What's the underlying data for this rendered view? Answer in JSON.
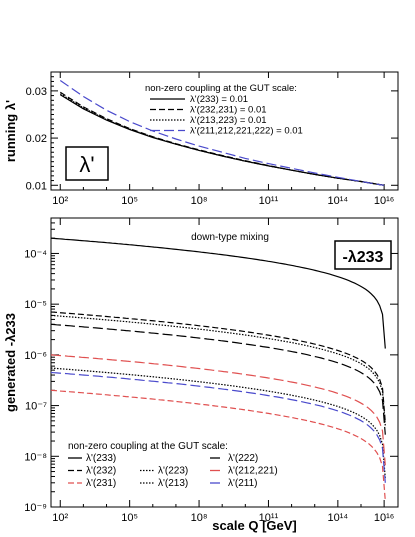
{
  "chart_data": [
    {
      "type": "line",
      "ylabel": "running λ'",
      "xscale": "log",
      "x_ticks": [
        "10²",
        "10⁵",
        "10⁸",
        "10¹¹",
        "10¹⁴",
        "10¹⁶"
      ],
      "y_ticks": [
        "0.03",
        "0.02",
        "0.01"
      ],
      "ylim": [
        0.009,
        0.034
      ],
      "panel_label": "λ'",
      "legend_title": "non-zero coupling at the GUT scale:",
      "legend_position": "top-right",
      "x": [
        100,
        1000.0,
        10000.0,
        100000.0,
        1000000.0,
        10000000.0,
        100000000.0,
        1000000000.0,
        10000000000.0,
        100000000000.0,
        1000000000000.0,
        10000000000000.0,
        100000000000000.0,
        1000000000000000.0,
        1e+16
      ],
      "series": [
        {
          "name": "λ'(233) = 0.01",
          "color": "#000000",
          "dash": "solid",
          "values": [
            0.0292,
            0.0262,
            0.0238,
            0.0218,
            0.0201,
            0.0187,
            0.0174,
            0.0162,
            0.0151,
            0.0141,
            0.0132,
            0.0123,
            0.0115,
            0.0108,
            0.01
          ]
        },
        {
          "name": "λ'(232,231) = 0.01",
          "color": "#000000",
          "dash": "dash",
          "values": [
            0.0297,
            0.0266,
            0.0241,
            0.022,
            0.0203,
            0.0188,
            0.0175,
            0.0163,
            0.0152,
            0.0142,
            0.0132,
            0.0123,
            0.0115,
            0.0108,
            0.01
          ]
        },
        {
          "name": "λ'(213,223) = 0.01",
          "color": "#000000",
          "dash": "dot",
          "values": [
            0.0294,
            0.0264,
            0.0239,
            0.0219,
            0.0202,
            0.0187,
            0.0174,
            0.0162,
            0.0151,
            0.0141,
            0.0132,
            0.0123,
            0.0115,
            0.0108,
            0.01
          ]
        },
        {
          "name": "λ'(211,212,221,222) = 0.01",
          "color": "#4a4acc",
          "dash": "longdash",
          "values": [
            0.0322,
            0.0288,
            0.0259,
            0.0235,
            0.0215,
            0.0198,
            0.0183,
            0.017,
            0.0157,
            0.0146,
            0.0136,
            0.0126,
            0.0117,
            0.0108,
            0.01
          ]
        }
      ]
    },
    {
      "type": "line",
      "xlabel": "scale Q [GeV]",
      "ylabel": "generated -λ233",
      "xscale": "log",
      "yscale": "log",
      "x_ticks": [
        "10²",
        "10⁵",
        "10⁸",
        "10¹¹",
        "10¹⁴",
        "10¹⁶"
      ],
      "y_ticks": [
        "10⁻⁴",
        "10⁻⁵",
        "10⁻⁶",
        "10⁻⁷",
        "10⁻⁸",
        "10⁻⁹"
      ],
      "ylim": [
        1e-09,
        0.0005
      ],
      "annotation": "down-type mixing",
      "panel_label": "-λ233",
      "legend_title": "non-zero coupling at the GUT scale:",
      "legend_position": "bottom-left",
      "series": [
        {
          "name": "λ'(233)",
          "color": "#000000",
          "dash": "solid",
          "start": 0.0002
        },
        {
          "name": "λ'(232)",
          "color": "#000000",
          "dash": "dash",
          "start": 7e-06
        },
        {
          "name": "λ'(231)",
          "color": "#e05050",
          "dash": "dash",
          "start": 2e-07
        },
        {
          "name": "λ'(223)",
          "color": "#000000",
          "dash": "dot",
          "start": 6e-06
        },
        {
          "name": "λ'(213)",
          "color": "#000000",
          "dash": "dot",
          "start": 5.5e-07
        },
        {
          "name": "λ'(222)",
          "color": "#000000",
          "dash": "longdash",
          "start": 4e-06
        },
        {
          "name": "λ'(212,221)",
          "color": "#e05050",
          "dash": "longdash",
          "start": 1e-06
        },
        {
          "name": "λ'(211)",
          "color": "#4a4acc",
          "dash": "longdash",
          "start": 4.5e-07
        }
      ]
    }
  ]
}
